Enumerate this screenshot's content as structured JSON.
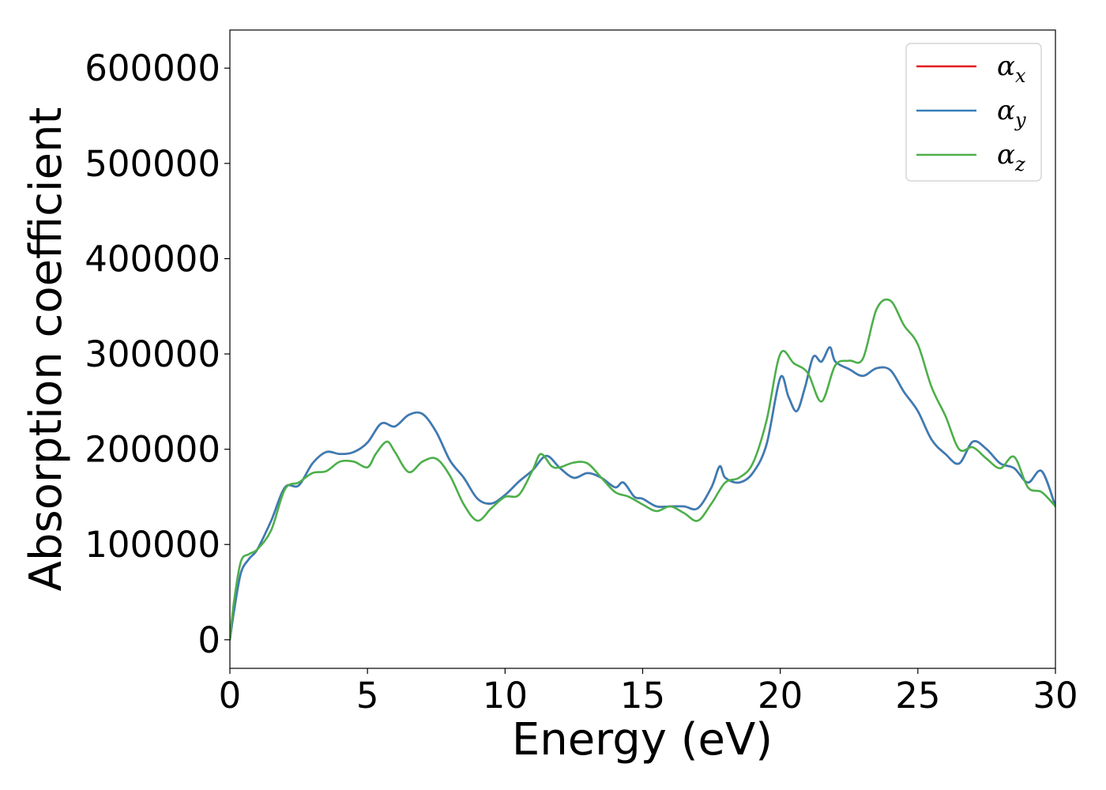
{
  "chart_data": {
    "type": "line",
    "xlabel": "Energy (eV)",
    "ylabel": "Absorption coefficient",
    "xlim": [
      0,
      30
    ],
    "ylim": [
      -30000,
      640000
    ],
    "xticks": [
      0,
      5,
      10,
      15,
      20,
      25,
      30
    ],
    "yticks": [
      0,
      100000,
      200000,
      300000,
      400000,
      500000,
      600000
    ],
    "grid": false,
    "legend_position": "top-right",
    "series": [
      {
        "name": "α",
        "subscript": "x",
        "color": "#e41a1c",
        "x": [
          0,
          0.15,
          0.4,
          0.7,
          1.0,
          1.5,
          2.0,
          2.5,
          3.0,
          3.5,
          4.0,
          4.5,
          5.0,
          5.5,
          6.0,
          6.5,
          7.0,
          7.5,
          8.0,
          8.5,
          9.0,
          9.5,
          10.0,
          10.5,
          11.0,
          11.5,
          12.0,
          12.5,
          13.0,
          13.5,
          14.0,
          14.3,
          14.7,
          15.0,
          15.5,
          16.0,
          16.5,
          17.0,
          17.5,
          17.8,
          18.0,
          18.5,
          19.0,
          19.5,
          20.0,
          20.3,
          20.6,
          20.9,
          21.2,
          21.5,
          21.8,
          22.0,
          22.5,
          23.0,
          23.5,
          24.0,
          24.5,
          25.0,
          25.5,
          26.0,
          26.5,
          27.0,
          27.5,
          28.0,
          28.5,
          29.0,
          29.5,
          30.0
        ],
        "y": [
          0,
          30000,
          70000,
          85000,
          95000,
          125000,
          160000,
          162000,
          185000,
          197000,
          195000,
          197000,
          207000,
          227000,
          224000,
          236000,
          237000,
          218000,
          188000,
          170000,
          148000,
          143000,
          152000,
          166000,
          178000,
          193000,
          180000,
          170000,
          175000,
          170000,
          160000,
          165000,
          150000,
          148000,
          140000,
          140000,
          140000,
          138000,
          160000,
          182000,
          170000,
          165000,
          175000,
          205000,
          275000,
          255000,
          240000,
          265000,
          297000,
          292000,
          307000,
          292000,
          284000,
          277000,
          285000,
          283000,
          260000,
          240000,
          210000,
          195000,
          185000,
          208000,
          200000,
          185000,
          180000,
          165000,
          177000,
          140000
        ]
      },
      {
        "name": "α",
        "subscript": "y",
        "color": "#377eb8",
        "x": [
          0,
          0.15,
          0.4,
          0.7,
          1.0,
          1.5,
          2.0,
          2.5,
          3.0,
          3.5,
          4.0,
          4.5,
          5.0,
          5.5,
          6.0,
          6.5,
          7.0,
          7.5,
          8.0,
          8.5,
          9.0,
          9.5,
          10.0,
          10.5,
          11.0,
          11.5,
          12.0,
          12.5,
          13.0,
          13.5,
          14.0,
          14.3,
          14.7,
          15.0,
          15.5,
          16.0,
          16.5,
          17.0,
          17.5,
          17.8,
          18.0,
          18.5,
          19.0,
          19.5,
          20.0,
          20.3,
          20.6,
          20.9,
          21.2,
          21.5,
          21.8,
          22.0,
          22.5,
          23.0,
          23.5,
          24.0,
          24.5,
          25.0,
          25.5,
          26.0,
          26.5,
          27.0,
          27.5,
          28.0,
          28.5,
          29.0,
          29.5,
          30.0
        ],
        "y": [
          0,
          30000,
          70000,
          85000,
          95000,
          125000,
          160000,
          162000,
          185000,
          197000,
          195000,
          197000,
          207000,
          227000,
          224000,
          236000,
          237000,
          218000,
          188000,
          170000,
          148000,
          143000,
          152000,
          166000,
          178000,
          193000,
          180000,
          170000,
          175000,
          170000,
          160000,
          165000,
          150000,
          148000,
          140000,
          140000,
          140000,
          138000,
          160000,
          182000,
          170000,
          165000,
          175000,
          205000,
          275000,
          255000,
          240000,
          265000,
          297000,
          292000,
          307000,
          292000,
          284000,
          277000,
          285000,
          283000,
          260000,
          240000,
          210000,
          195000,
          185000,
          208000,
          200000,
          185000,
          180000,
          165000,
          177000,
          140000
        ]
      },
      {
        "name": "α",
        "subscript": "z",
        "color": "#4daf4a",
        "x": [
          0,
          0.15,
          0.4,
          0.7,
          1.0,
          1.5,
          2.0,
          2.5,
          3.0,
          3.5,
          4.0,
          4.5,
          5.0,
          5.3,
          5.7,
          6.0,
          6.5,
          7.0,
          7.5,
          8.0,
          8.5,
          9.0,
          9.5,
          10.0,
          10.5,
          11.0,
          11.3,
          11.7,
          12.0,
          12.5,
          13.0,
          13.5,
          14.0,
          14.5,
          15.0,
          15.5,
          16.0,
          16.5,
          17.0,
          17.5,
          18.0,
          18.5,
          19.0,
          19.5,
          20.0,
          20.5,
          21.0,
          21.5,
          22.0,
          22.5,
          23.0,
          23.5,
          24.0,
          24.5,
          25.0,
          25.5,
          26.0,
          26.5,
          27.0,
          27.5,
          28.0,
          28.5,
          29.0,
          29.5,
          30.0
        ],
        "y": [
          0,
          40000,
          82000,
          90000,
          95000,
          115000,
          158000,
          165000,
          175000,
          177000,
          187000,
          187000,
          181000,
          195000,
          208000,
          197000,
          176000,
          187000,
          190000,
          172000,
          142000,
          125000,
          138000,
          150000,
          152000,
          178000,
          195000,
          182000,
          181000,
          186000,
          185000,
          170000,
          155000,
          150000,
          142000,
          135000,
          140000,
          133000,
          125000,
          143000,
          165000,
          170000,
          185000,
          230000,
          300000,
          290000,
          280000,
          250000,
          288000,
          293000,
          295000,
          347000,
          356000,
          330000,
          310000,
          265000,
          235000,
          200000,
          202000,
          190000,
          180000,
          192000,
          160000,
          155000,
          140000
        ]
      }
    ]
  }
}
